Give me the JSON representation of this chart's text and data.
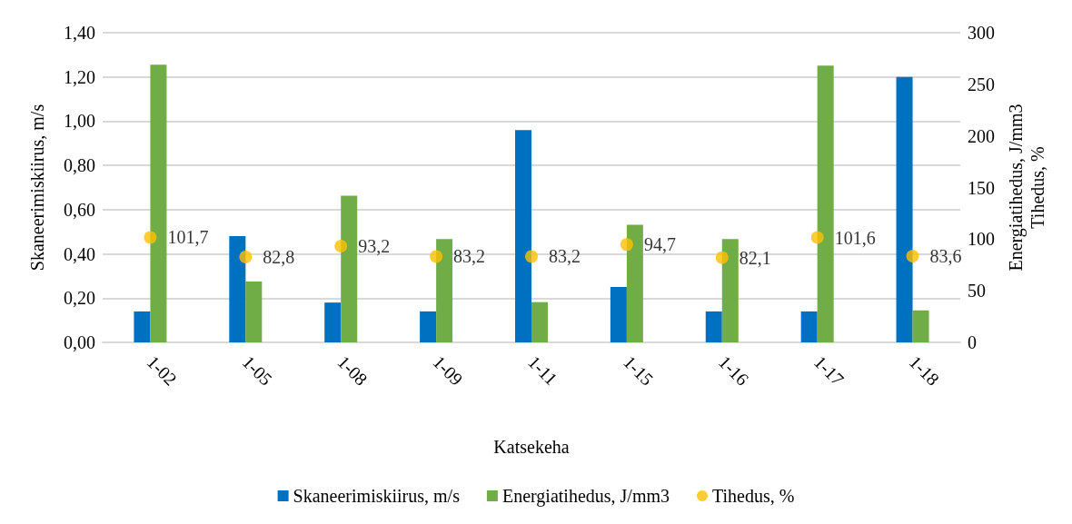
{
  "chart_data": {
    "type": "bar",
    "xlabel": "Katsekeha",
    "ylabel": "Skaneerimiskiirus, m/s",
    "y2label": "Energiatihedus, J/mm3\nTihedus, %",
    "categories": [
      "1-02",
      "1-05",
      "1-08",
      "1-09",
      "1-11",
      "1-15",
      "1-16",
      "1-17",
      "1-18"
    ],
    "series": [
      {
        "name": "Skaneerimiskiirus, m/s",
        "color": "#0070c0",
        "values": [
          0.14,
          0.48,
          0.18,
          0.14,
          0.96,
          0.25,
          0.14,
          0.14,
          1.2
        ]
      },
      {
        "name": "Energiatihedus, J/mm3",
        "color": "#70ad47",
        "axis": "y2",
        "values": [
          269,
          59,
          142,
          100,
          39,
          114,
          100,
          268,
          31
        ]
      },
      {
        "name": "Tihedus, %",
        "type": "scatter",
        "color": "#ffc000",
        "axis": "y2",
        "marker": "circle",
        "values": [
          101.7,
          82.8,
          93.2,
          83.2,
          83.2,
          94.7,
          82.1,
          101.6,
          83.6
        ],
        "value_labels": [
          "101,7",
          "82,8",
          "93,2",
          "83,2",
          "83,2",
          "94,7",
          "82,1",
          "101,6",
          "83,6"
        ]
      }
    ],
    "ylim": [
      0,
      1.4
    ],
    "yticks": [
      {
        "value": 0,
        "label": "0,00"
      },
      {
        "value": 0.2,
        "label": "0,20"
      },
      {
        "value": 0.4,
        "label": "0,40"
      },
      {
        "value": 0.6,
        "label": "0,60"
      },
      {
        "value": 0.8,
        "label": "0,80"
      },
      {
        "value": 1.0,
        "label": "1,00"
      },
      {
        "value": 1.2,
        "label": "1,20"
      },
      {
        "value": 1.4,
        "label": "1,40"
      }
    ],
    "y2lim": [
      0,
      300
    ],
    "y2ticks": [
      0,
      50,
      100,
      150,
      200,
      250,
      300
    ],
    "grid": "y",
    "legend": "bottom"
  }
}
